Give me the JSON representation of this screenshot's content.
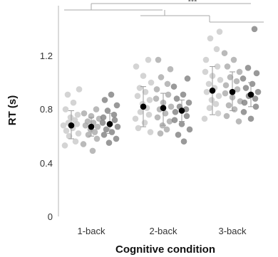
{
  "chart_data": {
    "type": "scatter",
    "xlabel": "Cognitive condition",
    "ylabel": "RT (s)",
    "ylim": [
      0,
      1.5
    ],
    "yticks": [
      0,
      0.4,
      0.8,
      1.2
    ],
    "categories": [
      "1-back",
      "2-back",
      "3-back"
    ],
    "series": [
      {
        "color": "#c9c9c9",
        "means": [
          0.68,
          0.82,
          0.94
        ],
        "err_low": [
          0.58,
          0.67,
          0.76
        ],
        "err_high": [
          0.79,
          0.97,
          1.12
        ],
        "points": [
          [
            0.53,
            0.56,
            0.6,
            0.62,
            0.64,
            0.66,
            0.68,
            0.69,
            0.7,
            0.72,
            0.74,
            0.76,
            0.8,
            0.85,
            0.91,
            0.95
          ],
          [
            0.63,
            0.66,
            0.7,
            0.73,
            0.76,
            0.78,
            0.81,
            0.84,
            0.87,
            0.9,
            0.93,
            0.96,
            1.0,
            1.05,
            1.12,
            1.17
          ],
          [
            0.73,
            0.77,
            0.81,
            0.84,
            0.87,
            0.9,
            0.93,
            0.96,
            0.99,
            1.02,
            1.05,
            1.08,
            1.12,
            1.17,
            1.25,
            1.33,
            1.38
          ]
        ]
      },
      {
        "color": "#a9a9a9",
        "means": [
          0.67,
          0.81,
          0.93
        ],
        "err_low": [
          0.6,
          0.68,
          0.79
        ],
        "err_high": [
          0.74,
          0.92,
          1.08
        ],
        "points": [
          [
            0.49,
            0.54,
            0.58,
            0.61,
            0.63,
            0.65,
            0.67,
            0.68,
            0.7,
            0.71,
            0.73,
            0.75,
            0.77,
            0.8
          ],
          [
            0.62,
            0.65,
            0.68,
            0.71,
            0.74,
            0.77,
            0.8,
            0.82,
            0.85,
            0.88,
            0.91,
            0.95,
            0.99,
            1.04,
            1.1,
            1.17
          ],
          [
            0.71,
            0.75,
            0.8,
            0.83,
            0.86,
            0.89,
            0.92,
            0.95,
            0.98,
            1.01,
            1.04,
            1.08,
            1.12,
            1.17,
            1.22
          ]
        ]
      },
      {
        "color": "#7f7f7f",
        "means": [
          0.69,
          0.79,
          0.91
        ],
        "err_low": [
          0.62,
          0.71,
          0.82
        ],
        "err_high": [
          0.77,
          0.87,
          1.0
        ],
        "points": [
          [
            0.55,
            0.58,
            0.61,
            0.63,
            0.65,
            0.67,
            0.69,
            0.7,
            0.72,
            0.74,
            0.76,
            0.79,
            0.83,
            0.87,
            0.91
          ],
          [
            0.56,
            0.61,
            0.65,
            0.69,
            0.72,
            0.75,
            0.78,
            0.8,
            0.82,
            0.85,
            0.88,
            0.91,
            0.97,
            1.03
          ],
          [
            0.73,
            0.78,
            0.82,
            0.85,
            0.88,
            0.9,
            0.93,
            0.96,
            0.99,
            1.03,
            1.07,
            1.11,
            1.4
          ]
        ]
      }
    ],
    "significance": [
      {
        "groups": [
          0,
          1
        ],
        "label": ""
      },
      {
        "groups": [
          0,
          2
        ],
        "label": "***"
      },
      {
        "groups": [
          1,
          2
        ],
        "label": ""
      },
      {
        "groups": [
          1,
          2
        ],
        "label": ""
      }
    ]
  }
}
